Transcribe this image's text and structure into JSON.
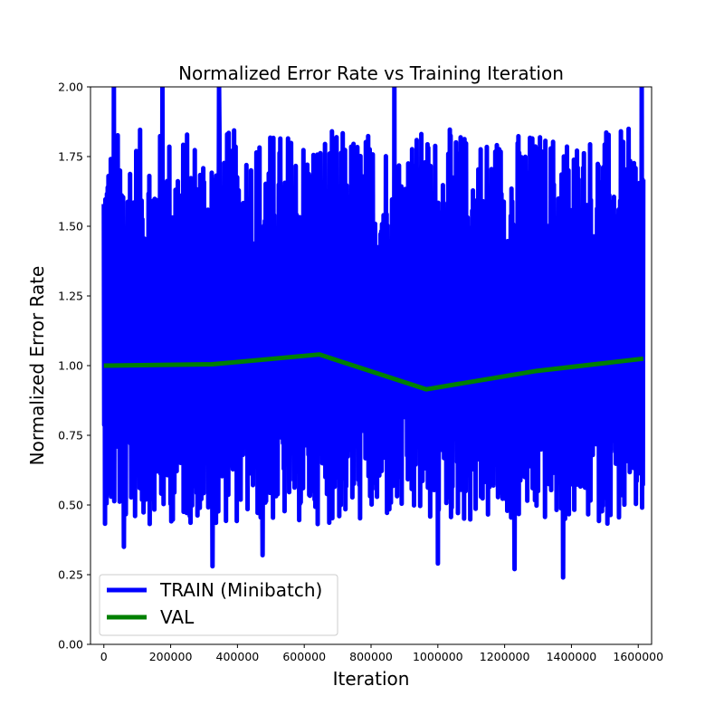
{
  "chart_data": {
    "type": "line",
    "title": "Normalized Error Rate vs Training Iteration",
    "xlabel": "Iteration",
    "ylabel": "Normalized Error Rate",
    "xlim": [
      -40000,
      1640000
    ],
    "ylim": [
      0.0,
      2.0
    ],
    "xticks": [
      0,
      200000,
      400000,
      600000,
      800000,
      1000000,
      1200000,
      1400000,
      1600000
    ],
    "xtick_labels": [
      "0",
      "200000",
      "400000",
      "600000",
      "800000",
      "1000000",
      "1200000",
      "1400000",
      "1600000"
    ],
    "yticks": [
      0.0,
      0.25,
      0.5,
      0.75,
      1.0,
      1.25,
      1.5,
      1.75,
      2.0
    ],
    "ytick_labels": [
      "0.00",
      "0.25",
      "0.50",
      "0.75",
      "1.00",
      "1.25",
      "1.50",
      "1.75",
      "2.00"
    ],
    "grid": false,
    "legend_position": "lower-left",
    "series": [
      {
        "name": "TRAIN (Minibatch)",
        "color": "#0000ff",
        "style": "noisy minibatch trace oscillating roughly between 0.25 and 2.0, centered near 1.0",
        "x_range": [
          0,
          1615000
        ],
        "y_band": [
          0.24,
          2.0
        ],
        "center": 1.0,
        "spikes": [
          {
            "x": 30000,
            "y": 2.0
          },
          {
            "x": 60000,
            "y": 0.35
          },
          {
            "x": 175000,
            "y": 2.0
          },
          {
            "x": 325000,
            "y": 0.28
          },
          {
            "x": 345000,
            "y": 2.0
          },
          {
            "x": 475000,
            "y": 0.32
          },
          {
            "x": 870000,
            "y": 2.0
          },
          {
            "x": 1000000,
            "y": 0.29
          },
          {
            "x": 1230000,
            "y": 0.27
          },
          {
            "x": 1375000,
            "y": 0.24
          },
          {
            "x": 1610000,
            "y": 2.0
          }
        ]
      },
      {
        "name": "VAL",
        "color": "#008000",
        "x": [
          0,
          325000,
          645000,
          965000,
          1290000,
          1615000
        ],
        "y": [
          1.0,
          1.005,
          1.04,
          0.915,
          0.98,
          1.025
        ]
      }
    ]
  }
}
